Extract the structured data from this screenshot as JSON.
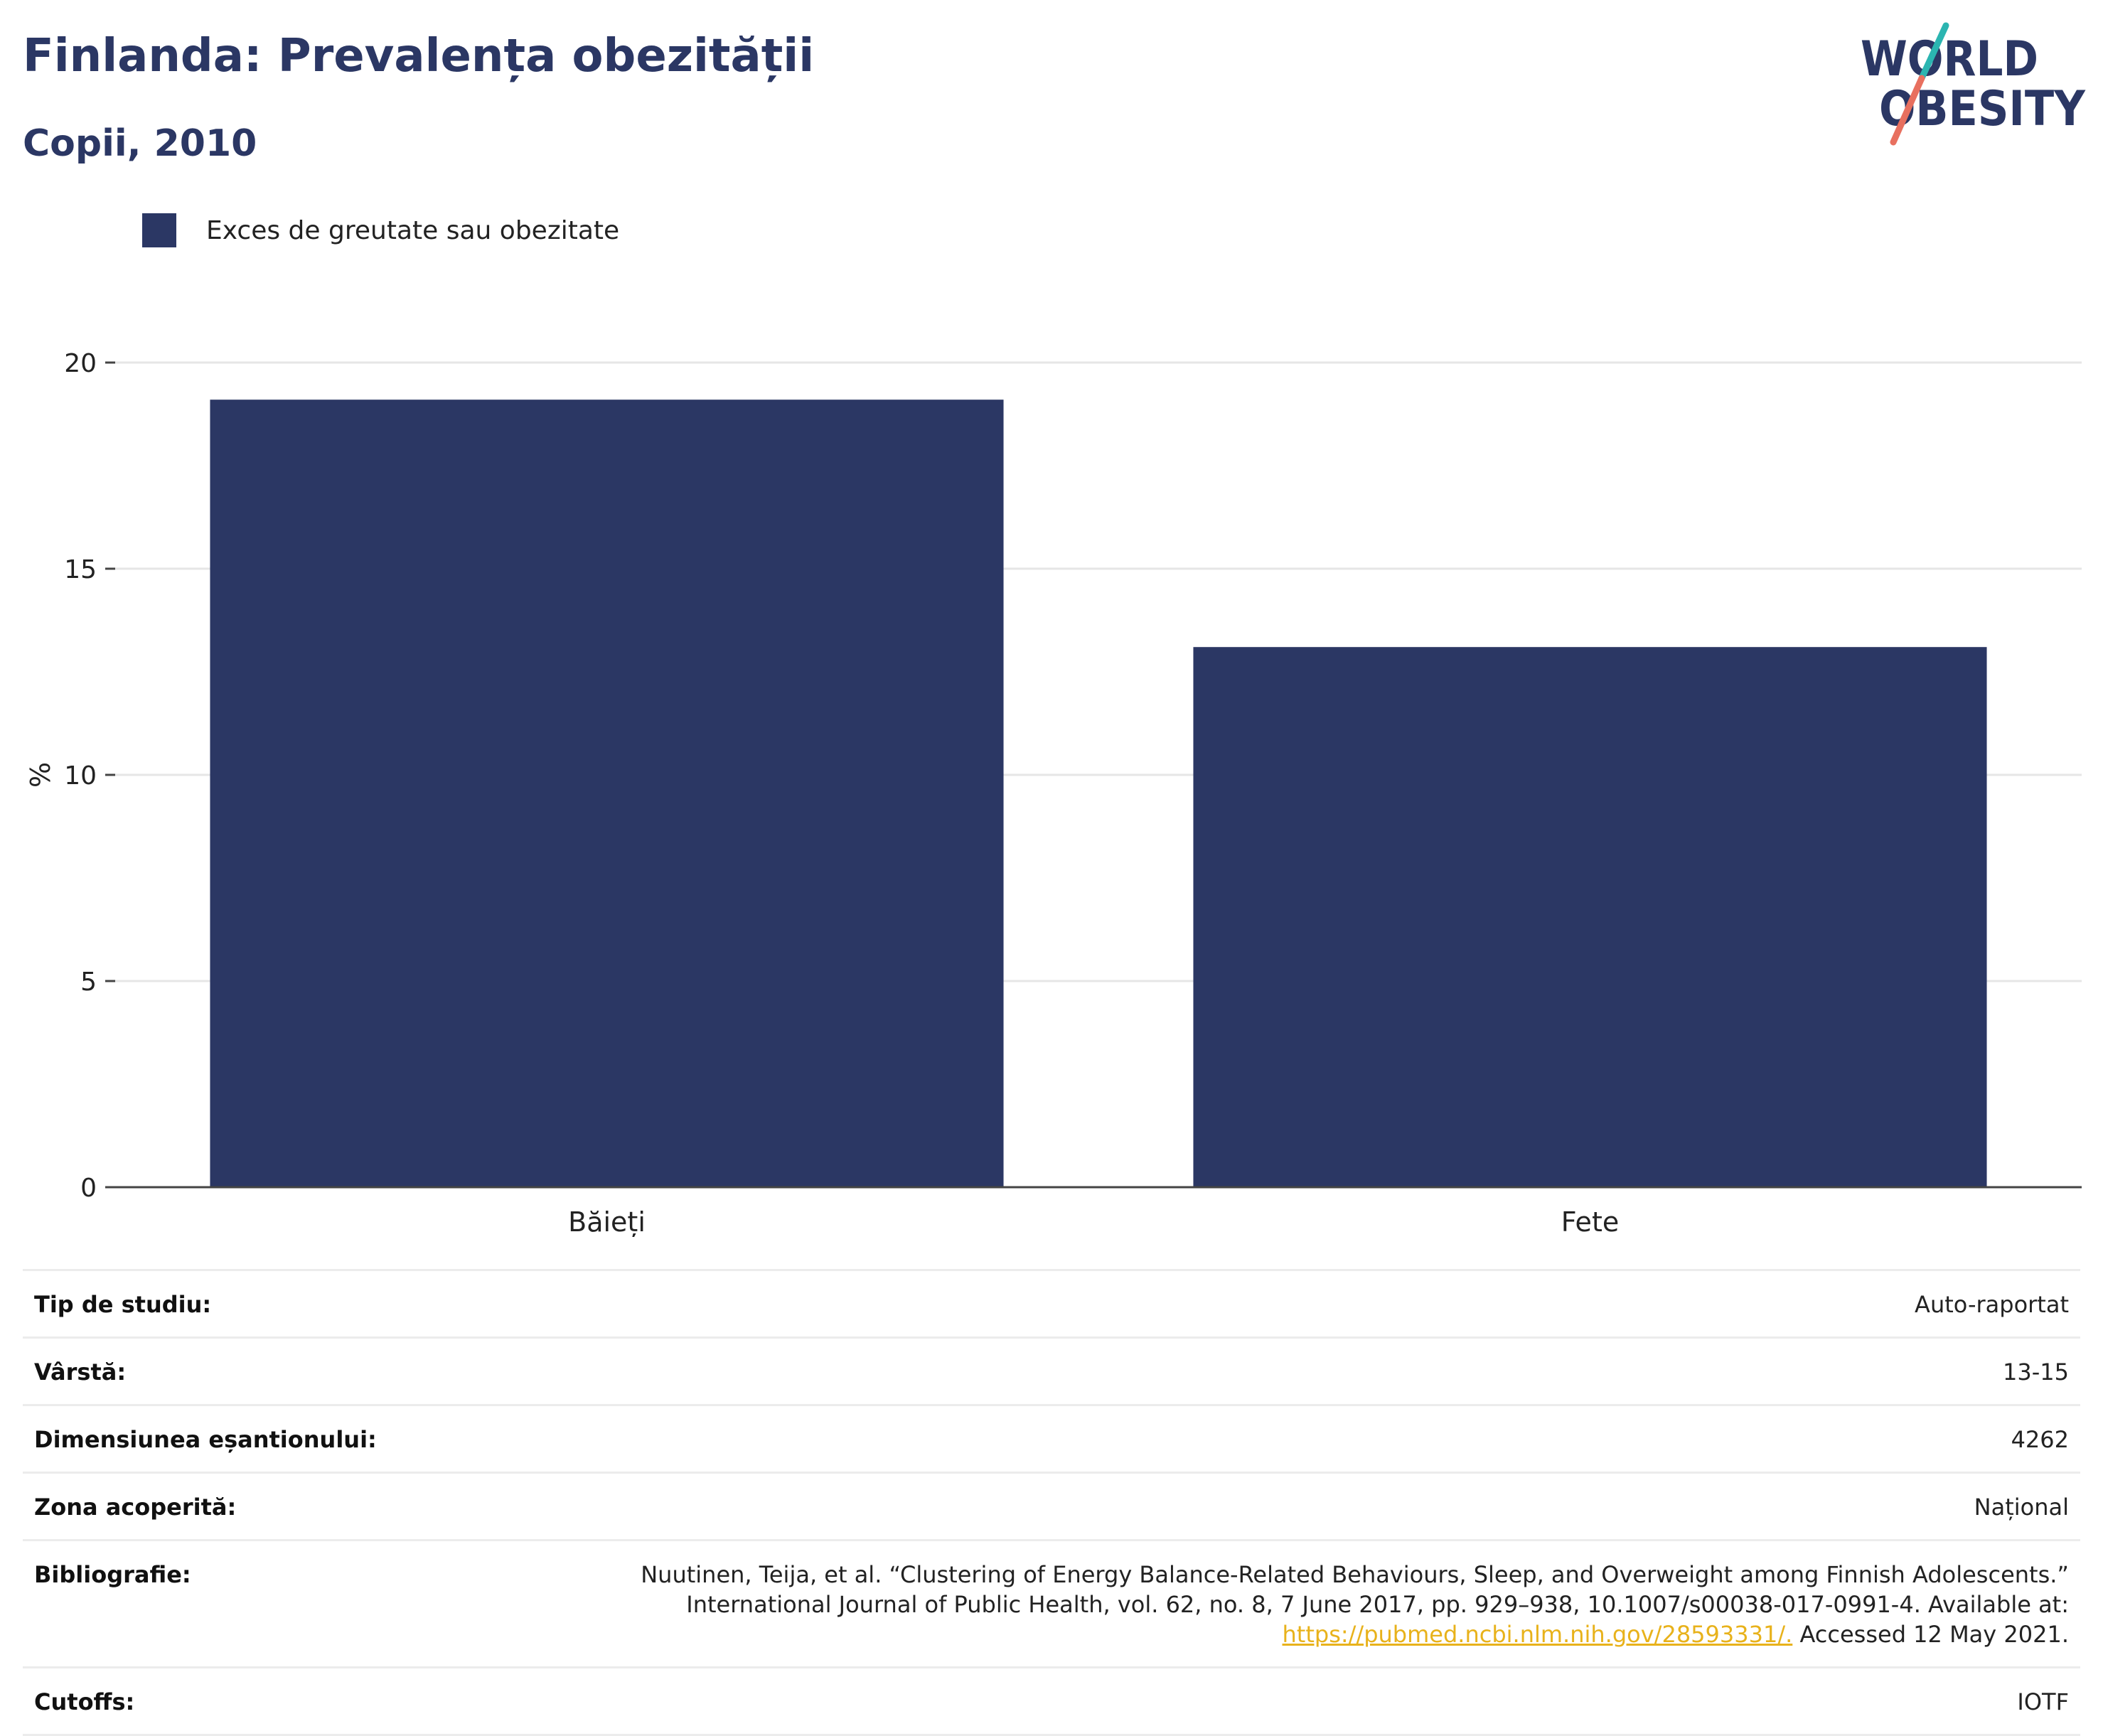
{
  "header": {
    "title": "Finlanda: Prevalența obezității",
    "subtitle": "Copii, 2010"
  },
  "logo": {
    "line1": "WORLD",
    "line2": "OBESITY",
    "colors": {
      "text": "#2b3764",
      "slash_top": "#2bb5b1",
      "slash_bottom": "#e8705f"
    }
  },
  "chart_data": {
    "type": "bar",
    "categories": [
      "Băieți",
      "Fete"
    ],
    "series": [
      {
        "name": "Exces de greutate sau obezitate",
        "values": [
          19.1,
          13.1
        ],
        "color": "#2b3764"
      }
    ],
    "ylabel": "%",
    "xlabel": "",
    "ylim": [
      0,
      20
    ],
    "yticks": [
      0,
      5,
      10,
      15,
      20
    ],
    "grid": true,
    "legend_position": "top-left"
  },
  "info": {
    "rows": [
      {
        "label": "Tip de studiu:",
        "value": "Auto-raportat"
      },
      {
        "label": "Vârstă:",
        "value": "13-15"
      },
      {
        "label": "Dimensiunea eșantionului:",
        "value": "4262"
      },
      {
        "label": "Zona acoperită:",
        "value": "Național"
      }
    ],
    "bibliography": {
      "label": "Bibliografie:",
      "line1": "Nuutinen, Teija, et al. “Clustering of Energy Balance-Related Behaviours, Sleep, and Overweight among Finnish Adolescents.”",
      "line2": "International Journal of Public Health, vol. 62, no. 8, 7 June 2017, pp. 929–938, 10.1007/s00038-017-0991-4. Available at:",
      "link": "https://pubmed.ncbi.nlm.nih.gov/28593331/.",
      "after_link": " Accessed 12 May 2021."
    },
    "cutoffs": {
      "label": "Cutoffs:",
      "value": "IOTF"
    }
  }
}
